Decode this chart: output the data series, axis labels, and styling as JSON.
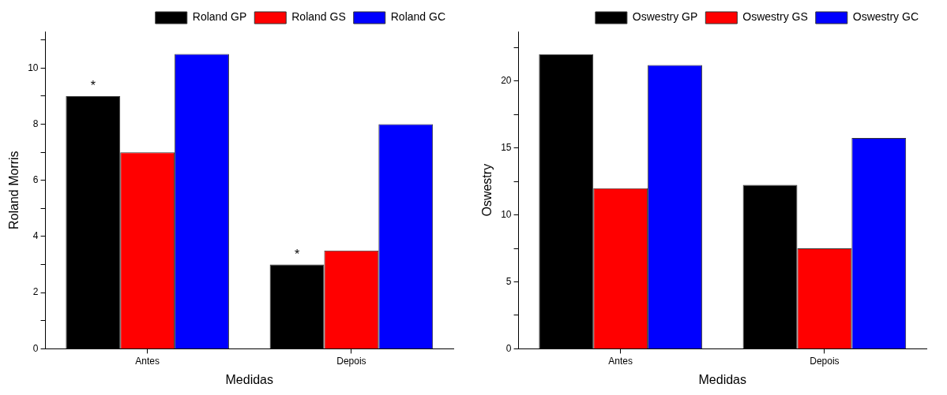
{
  "chart_data": [
    {
      "type": "bar",
      "xlabel": "Medidas",
      "ylabel": "Roland Morris",
      "categories": [
        "Antes",
        "Depois"
      ],
      "series": [
        {
          "name": "Roland GP",
          "color": "#000000",
          "values": [
            9,
            3
          ]
        },
        {
          "name": "Roland GS",
          "color": "#ff0000",
          "values": [
            7,
            3.5
          ]
        },
        {
          "name": "Roland GC",
          "color": "#0000ff",
          "values": [
            10.5,
            8
          ]
        }
      ],
      "ylim": [
        0,
        11.3
      ],
      "yticks": [
        0,
        {
          "value": 1,
          "label": null
        },
        2,
        {
          "value": 3,
          "label": null
        },
        4,
        {
          "value": 5,
          "label": null
        },
        6,
        {
          "value": 7,
          "label": null
        },
        8,
        {
          "value": 9,
          "label": null
        },
        10,
        {
          "value": 11,
          "label": null
        }
      ],
      "annotations": [
        "*",
        "*"
      ],
      "legend": "top right",
      "grid": false
    },
    {
      "type": "bar",
      "xlabel": "Medidas",
      "ylabel": "Oswestry",
      "categories": [
        "Antes",
        "Depois"
      ],
      "series": [
        {
          "name": "Oswestry GP",
          "color": "#000000",
          "values": [
            22,
            12.25
          ]
        },
        {
          "name": "Oswestry GS",
          "color": "#ff0000",
          "values": [
            12,
            7.5
          ]
        },
        {
          "name": "Oswestry GC",
          "color": "#0000ff",
          "values": [
            21.2,
            15.75
          ]
        }
      ],
      "ylim": [
        0,
        23.7
      ],
      "yticks": [
        0,
        {
          "value": 2.5,
          "label": null
        },
        5,
        {
          "value": 7.5,
          "label": null
        },
        10,
        {
          "value": 12.5,
          "label": null
        },
        15,
        {
          "value": 17.5,
          "label": null
        },
        20,
        {
          "value": 22.5,
          "label": null
        }
      ],
      "legend": "top right",
      "grid": false
    }
  ]
}
